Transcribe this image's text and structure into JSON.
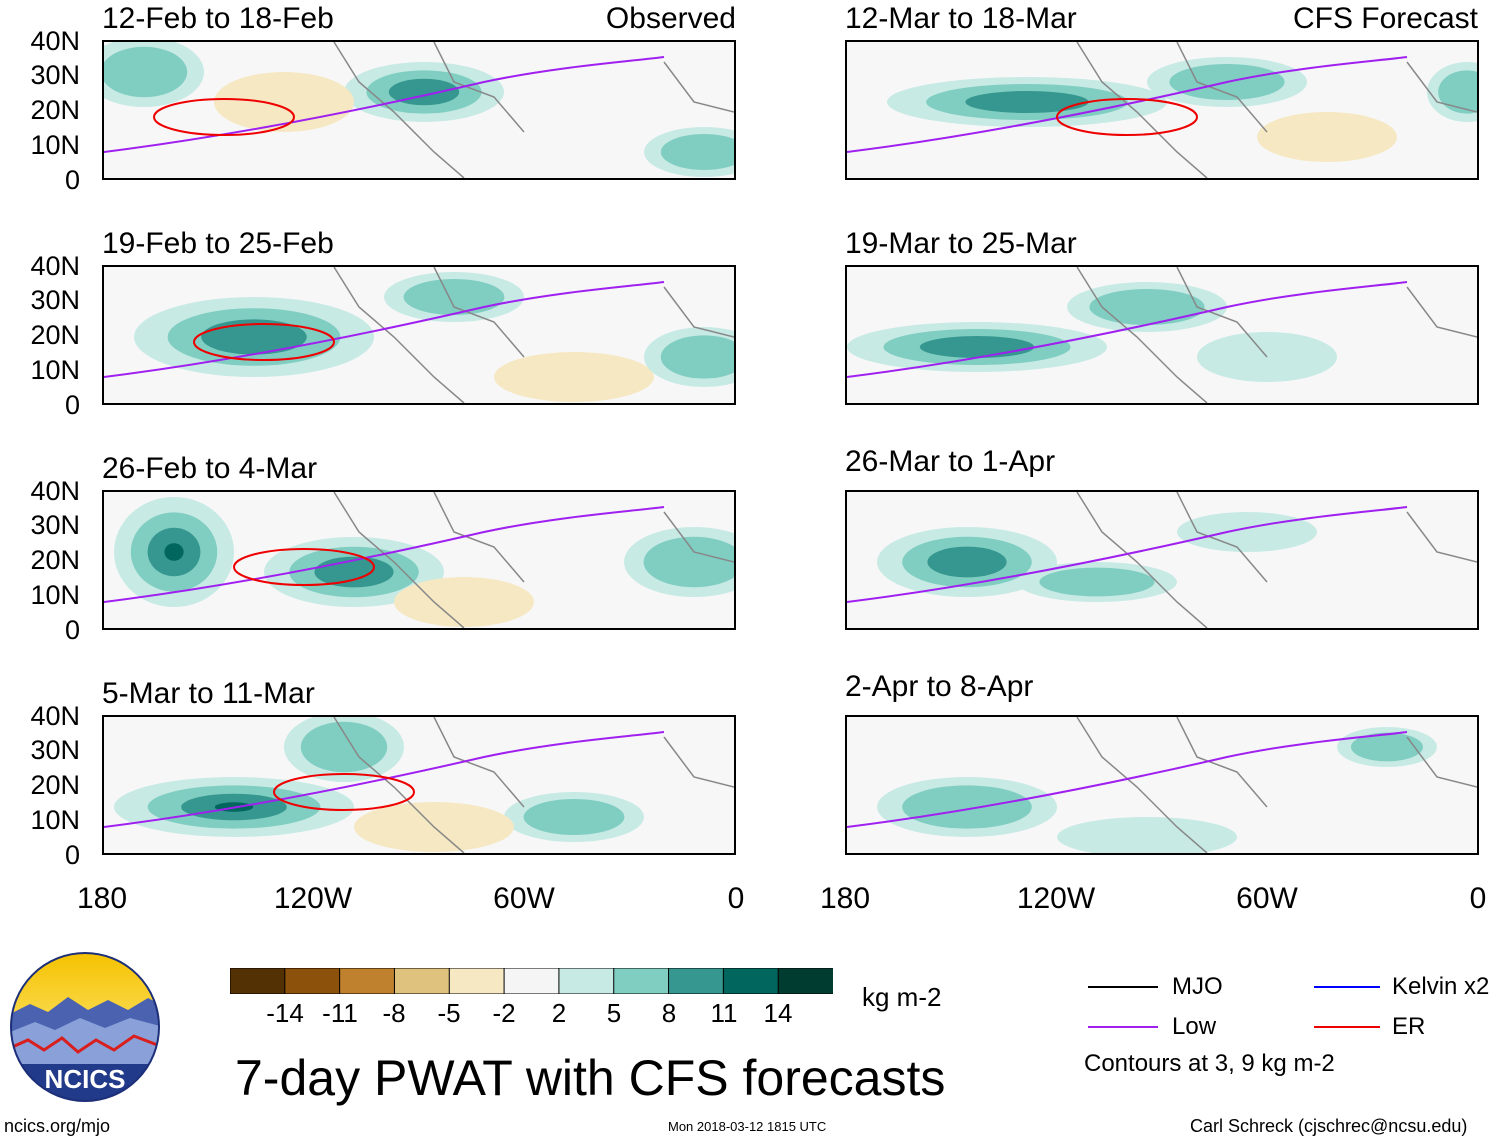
{
  "headers": {
    "left": "Observed",
    "right": "CFS Forecast"
  },
  "panels_left": [
    {
      "title": "12-Feb to 18-Feb"
    },
    {
      "title": "19-Feb to 25-Feb"
    },
    {
      "title": "26-Feb to 4-Mar"
    },
    {
      "title": "5-Mar to 11-Mar"
    }
  ],
  "panels_right": [
    {
      "title": "12-Mar to 18-Mar"
    },
    {
      "title": "19-Mar to 25-Mar"
    },
    {
      "title": "26-Mar to 1-Apr"
    },
    {
      "title": "2-Apr to 8-Apr"
    }
  ],
  "lat_labels": [
    "40N",
    "30N",
    "20N",
    "10N",
    "0"
  ],
  "lon_labels": [
    "180",
    "120W",
    "60W",
    "0"
  ],
  "colorbar": {
    "colors": [
      "#543005",
      "#8c510a",
      "#bf812d",
      "#dfc27d",
      "#f6e8c3",
      "#f5f5f5",
      "#c7eae5",
      "#80cdc1",
      "#35978f",
      "#01665e",
      "#003c30"
    ],
    "labels": [
      "-14",
      "-11",
      "-8",
      "-5",
      "-2",
      "2",
      "5",
      "8",
      "11",
      "14"
    ],
    "units": "kg m-2"
  },
  "legend": {
    "items": [
      {
        "label": "MJO",
        "color": "#000000"
      },
      {
        "label": "Kelvin x2",
        "color": "#0000ff"
      },
      {
        "label": "Low",
        "color": "#a020f0"
      },
      {
        "label": "ER",
        "color": "#ee0000"
      }
    ],
    "note": "Contours at 3, 9 kg m-2"
  },
  "logo_text": "NCICS",
  "main_title": "7-day PWAT with CFS forecasts",
  "footer": {
    "left": "ncics.org/mjo",
    "center": "Mon 2018-03-12 1815 UTC",
    "right": "Carl Schreck (cjschrec@ncsu.edu)"
  }
}
